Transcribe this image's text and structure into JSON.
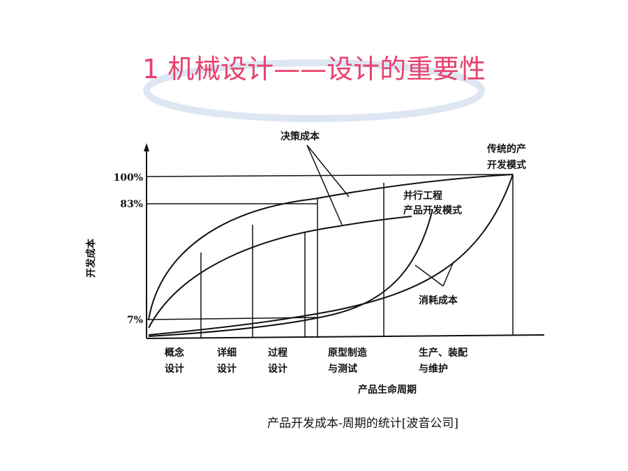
{
  "title": "1 机械设计——设计的重要性",
  "diagram": {
    "y_axis_label": "开发成本",
    "y_ticks": [
      "100%",
      "83%",
      "7%"
    ],
    "x_axis_label": "产品生命周期",
    "phases": [
      [
        "概念",
        "设计"
      ],
      [
        "详细",
        "设计"
      ],
      [
        "过程",
        "设计"
      ],
      [
        "原型制造",
        "与测试"
      ],
      [
        "生产、装配",
        "与维护"
      ]
    ],
    "curve_labels": {
      "decision": "决策成本",
      "traditional": [
        "传统的产",
        "开发模式"
      ],
      "concurrent": [
        "并行工程",
        "产品开发模式"
      ],
      "consumption": "消耗成本"
    }
  },
  "caption": "产品开发成本-周期的统计[波音公司]"
}
